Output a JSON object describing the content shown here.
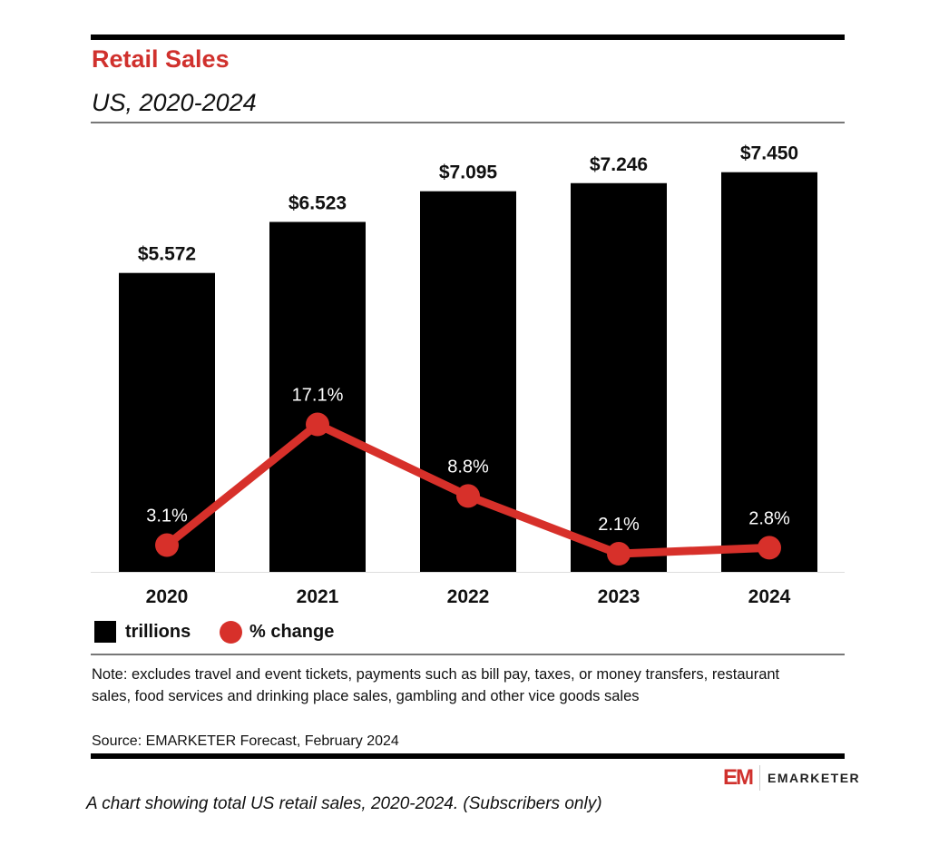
{
  "chart_data": {
    "type": "bar+line",
    "title": "Retail Sales",
    "subtitle": "US, 2020-2024",
    "categories": [
      "2020",
      "2021",
      "2022",
      "2023",
      "2024"
    ],
    "series": [
      {
        "name": "trillions",
        "type": "bar",
        "values": [
          5.572,
          6.523,
          7.095,
          7.246,
          7.45
        ],
        "labels": [
          "$5.572",
          "$6.523",
          "$7.095",
          "$7.246",
          "$7.450"
        ],
        "color": "#000000"
      },
      {
        "name": "% change",
        "type": "line",
        "values": [
          3.1,
          17.1,
          8.8,
          2.1,
          2.8
        ],
        "labels": [
          "3.1%",
          "17.1%",
          "8.8%",
          "2.1%",
          "2.8%"
        ],
        "color": "#d7302a"
      }
    ],
    "legend": "bottom-left",
    "grid": false
  },
  "note": "Note: excludes travel and event tickets, payments such as bill pay, taxes, or money transfers, restaurant sales, food services and drinking place sales, gambling and other vice goods sales",
  "source": "Source: EMARKETER Forecast, February 2024",
  "logo": {
    "mark": "EM",
    "word": "EMARKETER"
  },
  "caption": "A chart showing total US retail sales, 2020-2024. (Subscribers only)"
}
